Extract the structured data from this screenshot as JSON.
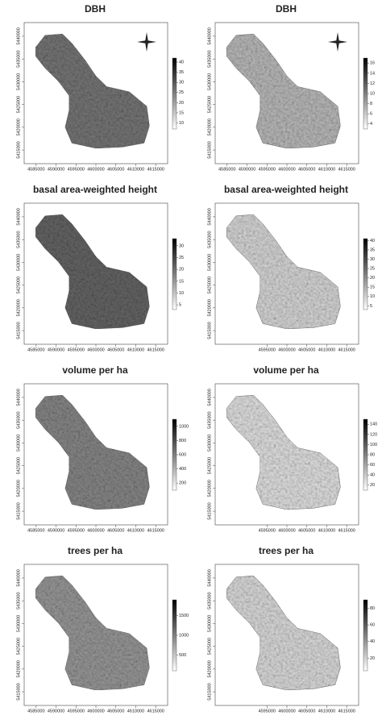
{
  "panels": [
    {
      "title": "DBH",
      "xticks": [
        4585000,
        4590000,
        4595000,
        4600000,
        4605000,
        4610000,
        4615000
      ],
      "xlim": [
        4582000,
        4618000
      ],
      "yticks": [
        5415000,
        5420000,
        5425000,
        5430000,
        5435000,
        5440000
      ],
      "ylim": [
        5412000,
        5443000
      ],
      "colorbar_ticks": [
        10,
        15,
        20,
        25,
        30,
        35,
        40
      ],
      "colorbar_lim": [
        7,
        42
      ]
    },
    {
      "title": "DBH",
      "xticks": [
        4585000,
        4590000,
        4595000,
        4600000,
        4605000,
        4610000,
        4615000
      ],
      "xlim": [
        4582000,
        4618000
      ],
      "yticks": [
        5415000,
        5420000,
        5425000,
        5430000,
        5435000,
        5440000
      ],
      "ylim": [
        5412000,
        5443000
      ],
      "colorbar_ticks": [
        4,
        6,
        8,
        10,
        12,
        14,
        16
      ],
      "colorbar_lim": [
        3,
        17
      ]
    },
    {
      "title": "basal area-weighted height",
      "xticks": [
        4585000,
        4590000,
        4595000,
        4600000,
        4605000,
        4610000,
        4615000
      ],
      "xlim": [
        4582000,
        4618000
      ],
      "yticks": [
        5415000,
        5420000,
        5425000,
        5430000,
        5435000,
        5440000
      ],
      "ylim": [
        5412000,
        5443000
      ],
      "colorbar_ticks": [
        5,
        10,
        15,
        20,
        25,
        30
      ],
      "colorbar_lim": [
        3,
        33
      ]
    },
    {
      "title": "basal area-weighted height",
      "xticks": [
        4595000,
        4600000,
        4605000,
        4610000,
        4615000
      ],
      "xlim": [
        4582000,
        4618000
      ],
      "yticks": [
        5415000,
        5420000,
        5425000,
        5430000,
        5435000,
        5440000
      ],
      "ylim": [
        5412000,
        5443000
      ],
      "colorbar_ticks": [
        5,
        10,
        15,
        20,
        25,
        30,
        35,
        40
      ],
      "colorbar_lim": [
        3,
        41
      ]
    },
    {
      "title": "volume per ha",
      "xticks": [
        4585000,
        4590000,
        4595000,
        4600000,
        4605000,
        4610000,
        4615000
      ],
      "xlim": [
        4582000,
        4618000
      ],
      "yticks": [
        5415000,
        5420000,
        5425000,
        5430000,
        5435000,
        5440000
      ],
      "ylim": [
        5412000,
        5443000
      ],
      "colorbar_ticks": [
        200,
        400,
        600,
        800,
        1000
      ],
      "colorbar_lim": [
        100,
        1100
      ]
    },
    {
      "title": "volume per ha",
      "xticks": [
        4595000,
        4600000,
        4605000,
        4610000,
        4615000
      ],
      "xlim": [
        4582000,
        4618000
      ],
      "yticks": [
        5415000,
        5420000,
        5425000,
        5430000,
        5435000,
        5440000
      ],
      "ylim": [
        5412000,
        5443000
      ],
      "colorbar_ticks": [
        20,
        40,
        60,
        80,
        100,
        120,
        140
      ],
      "colorbar_lim": [
        10,
        150
      ]
    },
    {
      "title": "trees per ha",
      "xticks": [
        4585000,
        4590000,
        4595000,
        4600000,
        4605000,
        4610000,
        4615000
      ],
      "xlim": [
        4582000,
        4618000
      ],
      "yticks": [
        5415000,
        5420000,
        5425000,
        5430000,
        5435000,
        5440000
      ],
      "ylim": [
        5412000,
        5443000
      ],
      "colorbar_ticks": [
        500,
        1000,
        1500
      ],
      "colorbar_lim": [
        100,
        1900
      ]
    },
    {
      "title": "trees per ha",
      "xticks": [
        4595000,
        4600000,
        4605000,
        4610000,
        4615000
      ],
      "xlim": [
        4582000,
        4618000
      ],
      "yticks": [
        5415000,
        5420000,
        5425000,
        5430000,
        5435000,
        5440000
      ],
      "ylim": [
        5412000,
        5443000
      ],
      "colorbar_ticks": [
        20,
        40,
        60,
        80
      ],
      "colorbar_lim": [
        5,
        90
      ]
    }
  ]
}
